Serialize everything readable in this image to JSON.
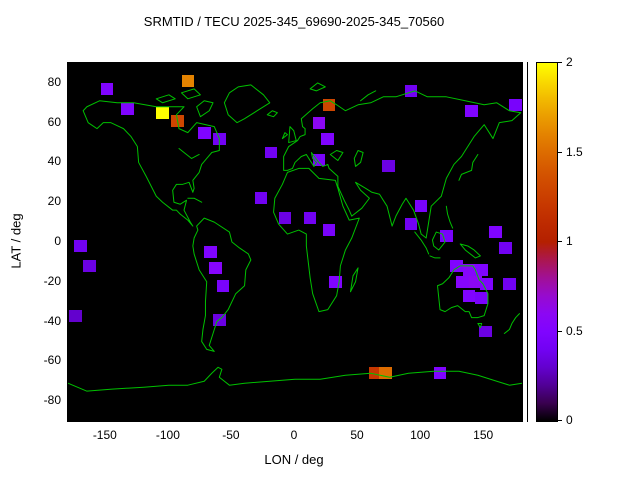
{
  "title": "SRMTID / TECU 2025-345_69690-2025-345_70560",
  "axes": {
    "x_label": "LON / deg",
    "y_label": "LAT / deg",
    "x_ticks": [
      -150,
      -100,
      -50,
      0,
      50,
      100,
      150
    ],
    "y_ticks": [
      -80,
      -60,
      -40,
      -20,
      0,
      20,
      40,
      60,
      80
    ]
  },
  "colorbar": {
    "min": 0,
    "max": 2,
    "ticks": [
      0,
      0.5,
      1,
      1.5,
      2
    ],
    "palette_name": "gnuplot default (rgbformulae 7,5,15)",
    "gradient_samples": [
      "#000000",
      "#5a00b4",
      "#8004ff",
      "#9c0db4",
      "#b42000",
      "#ca3e00",
      "#dd6c00",
      "#efab00",
      "#ffff00"
    ]
  },
  "colors": {
    "page_background": "#ffffff",
    "plot_background": "#000000",
    "coastline": "#00c000",
    "text": "#000000"
  },
  "chart_data": {
    "type": "heatmap",
    "title": "SRMTID / TECU 2025-345_69690-2025-345_70560",
    "xlabel": "LON / deg",
    "ylabel": "LAT / deg",
    "zlabel": "TECU",
    "xlim": [
      -180,
      180
    ],
    "ylim": [
      -90,
      90
    ],
    "zlim": [
      0,
      2
    ],
    "x_ticks": [
      -150,
      -100,
      -50,
      0,
      50,
      100,
      150
    ],
    "y_ticks": [
      -80,
      -60,
      -40,
      -20,
      0,
      20,
      40,
      60,
      80
    ],
    "z_ticks": [
      0,
      0.5,
      1,
      1.5,
      2
    ],
    "legend": "none (colorbar on right)",
    "grid": false,
    "background_layer": "world coastline map, green lines on black",
    "cell_size_deg": {
      "lon": 10,
      "lat": 6
    },
    "cells": [
      {
        "lon": -149,
        "lat": 77,
        "value": 0.5
      },
      {
        "lon": -85,
        "lat": 81,
        "value": 1.6
      },
      {
        "lon": -133,
        "lat": 67,
        "value": 0.5
      },
      {
        "lon": -105,
        "lat": 65,
        "value": 2.0
      },
      {
        "lon": -93,
        "lat": 61,
        "value": 1.3
      },
      {
        "lon": -72,
        "lat": 55,
        "value": 0.5
      },
      {
        "lon": -60,
        "lat": 52,
        "value": 0.4
      },
      {
        "lon": 27,
        "lat": 69,
        "value": 1.3
      },
      {
        "lon": 19,
        "lat": 60,
        "value": 0.6
      },
      {
        "lon": 26,
        "lat": 52,
        "value": 0.5
      },
      {
        "lon": 19,
        "lat": 41,
        "value": 0.45
      },
      {
        "lon": -19,
        "lat": 45,
        "value": 0.4
      },
      {
        "lon": -27,
        "lat": 22,
        "value": 0.4
      },
      {
        "lon": -8,
        "lat": 12,
        "value": 0.35
      },
      {
        "lon": 12,
        "lat": 12,
        "value": 0.4
      },
      {
        "lon": 27,
        "lat": 6,
        "value": 0.45
      },
      {
        "lon": 32,
        "lat": -20,
        "value": 0.5
      },
      {
        "lon": -67,
        "lat": -5,
        "value": 0.5
      },
      {
        "lon": -63,
        "lat": -13,
        "value": 0.55
      },
      {
        "lon": -57,
        "lat": -22,
        "value": 0.45
      },
      {
        "lon": -60,
        "lat": -39,
        "value": 0.35
      },
      {
        "lon": -170,
        "lat": -2,
        "value": 0.4
      },
      {
        "lon": -163,
        "lat": -12,
        "value": 0.35
      },
      {
        "lon": -174,
        "lat": -37,
        "value": 0.3
      },
      {
        "lon": 92,
        "lat": 76,
        "value": 0.4
      },
      {
        "lon": 140,
        "lat": 66,
        "value": 0.5
      },
      {
        "lon": 175,
        "lat": 69,
        "value": 0.45
      },
      {
        "lon": 74,
        "lat": 38,
        "value": 0.35
      },
      {
        "lon": 100,
        "lat": 18,
        "value": 0.45
      },
      {
        "lon": 92,
        "lat": 9,
        "value": 0.4
      },
      {
        "lon": 120,
        "lat": 3,
        "value": 0.45
      },
      {
        "lon": 159,
        "lat": 5,
        "value": 0.5
      },
      {
        "lon": 167,
        "lat": -3,
        "value": 0.4
      },
      {
        "lon": 128,
        "lat": -12,
        "value": 0.5
      },
      {
        "lon": 138,
        "lat": -14,
        "value": 0.55
      },
      {
        "lon": 148,
        "lat": -14,
        "value": 0.5
      },
      {
        "lon": 133,
        "lat": -20,
        "value": 0.55
      },
      {
        "lon": 143,
        "lat": -20,
        "value": 0.6
      },
      {
        "lon": 152,
        "lat": -21,
        "value": 0.5
      },
      {
        "lon": 138,
        "lat": -27,
        "value": 0.5
      },
      {
        "lon": 148,
        "lat": -28,
        "value": 0.45
      },
      {
        "lon": 170,
        "lat": -21,
        "value": 0.4
      },
      {
        "lon": 151,
        "lat": -45,
        "value": 0.35
      },
      {
        "lon": 64,
        "lat": -66,
        "value": 1.2
      },
      {
        "lon": 72,
        "lat": -66,
        "value": 1.5
      },
      {
        "lon": 115,
        "lat": -66,
        "value": 0.5
      }
    ]
  }
}
